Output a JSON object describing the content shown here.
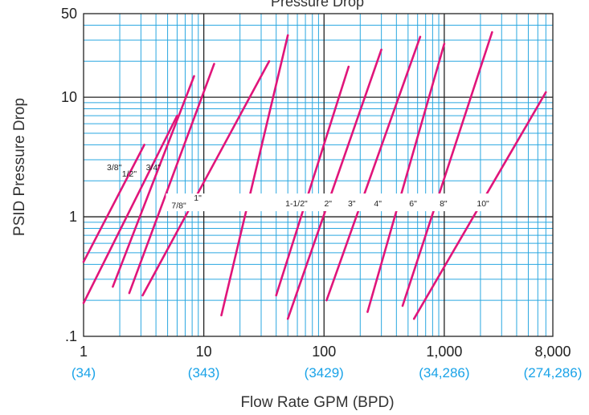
{
  "chart_data": {
    "type": "line",
    "title_partial": "Pressure Drop",
    "xlabel": "Flow Rate GPM (BPD)",
    "ylabel": "PSID Pressure Drop",
    "x_scale": "log",
    "y_scale": "log",
    "xlim": [
      1,
      8000
    ],
    "ylim": [
      0.1,
      50
    ],
    "x_ticks": [
      "1",
      "10",
      "100",
      "1,000",
      "8,000"
    ],
    "x_ticks_bpd": [
      "(34)",
      "(343)",
      "(3429)",
      "(34,286)",
      "(274,286)"
    ],
    "y_ticks": [
      "50",
      "10",
      "1",
      ".1"
    ],
    "grid": true,
    "series": [
      {
        "name": "3/8\"",
        "points": [
          [
            1.0,
            0.42
          ],
          [
            3.2,
            4.0
          ]
        ]
      },
      {
        "name": "1/2\"",
        "points": [
          [
            1.0,
            0.19
          ],
          [
            6.0,
            7.0
          ]
        ]
      },
      {
        "name": "3/4\"",
        "points": [
          [
            1.75,
            0.26
          ],
          [
            8.3,
            15.0
          ]
        ]
      },
      {
        "name": "7/8\"",
        "points": [
          [
            2.4,
            0.23
          ],
          [
            12.2,
            19.0
          ]
        ]
      },
      {
        "name": "1\"",
        "points": [
          [
            3.1,
            0.22
          ],
          [
            35.0,
            20.0
          ]
        ]
      },
      {
        "name": "1-1/2\"",
        "points": [
          [
            14.0,
            0.15
          ],
          [
            50.0,
            33.0
          ]
        ]
      },
      {
        "name": "2\"",
        "points": [
          [
            40.0,
            0.22
          ],
          [
            160.0,
            18.0
          ]
        ]
      },
      {
        "name": "3\"",
        "points": [
          [
            50.0,
            0.14
          ],
          [
            300.0,
            25.0
          ]
        ]
      },
      {
        "name": "4\"",
        "points": [
          [
            105.0,
            0.2
          ],
          [
            630.0,
            32.0
          ]
        ]
      },
      {
        "name": "6\"",
        "points": [
          [
            230.0,
            0.16
          ],
          [
            1000.0,
            28.0
          ]
        ]
      },
      {
        "name": "8\"",
        "points": [
          [
            450.0,
            0.18
          ],
          [
            2500.0,
            35.0
          ]
        ]
      },
      {
        "name": "10\"",
        "points": [
          [
            560.0,
            0.14
          ],
          [
            7000.0,
            11.0
          ]
        ]
      }
    ],
    "size_labels": [
      {
        "text": "3/8\"",
        "x": 1.8,
        "y": 2.6
      },
      {
        "text": "1/2\"",
        "x": 2.4,
        "y": 2.3
      },
      {
        "text": "3/4\"",
        "x": 3.8,
        "y": 2.6
      },
      {
        "text": "7/8\"",
        "x": 6.2,
        "y": 1.25
      },
      {
        "text": "1\"",
        "x": 8.9,
        "y": 1.45
      },
      {
        "text": "1-1/2\"",
        "x": 59.0,
        "y": 1.3
      },
      {
        "text": "2\"",
        "x": 108.0,
        "y": 1.3
      },
      {
        "text": "3\"",
        "x": 170.0,
        "y": 1.3
      },
      {
        "text": "4\"",
        "x": 280.0,
        "y": 1.3
      },
      {
        "text": "6\"",
        "x": 550.0,
        "y": 1.3
      },
      {
        "text": "8\"",
        "x": 985.0,
        "y": 1.3
      },
      {
        "text": "10\"",
        "x": 2100.0,
        "y": 1.3
      }
    ],
    "colors": {
      "grid_minor": "#2aa7e0",
      "grid_major": "#222222",
      "curve": "#e0157a",
      "bpd": "#1aa3e8"
    }
  }
}
